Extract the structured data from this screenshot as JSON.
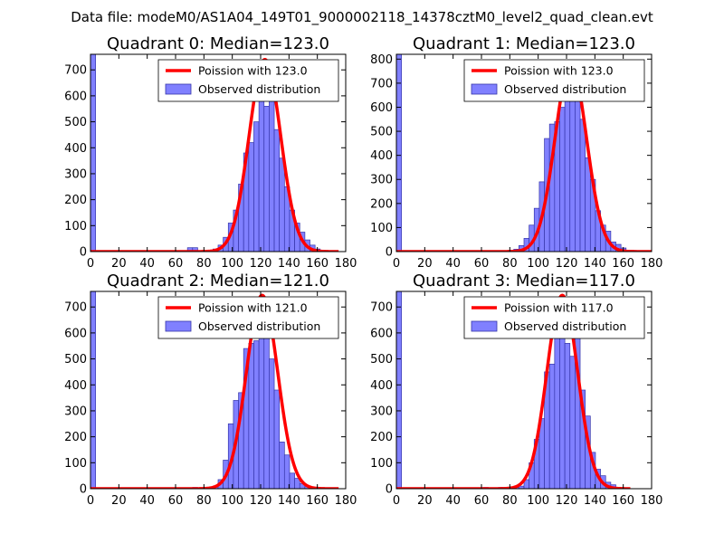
{
  "figure": {
    "title": "Data file: modeM0/AS1A04_149T01_9000002118_14378cztM0_level2_quad_clean.evt",
    "colors": {
      "hist_fill": "#8080ff",
      "hist_edge": "#3535aa",
      "curve": "#ff0000",
      "frame": "#000000"
    }
  },
  "chart_data": [
    {
      "type": "bar",
      "title": "Quadrant 0: Median=123.0",
      "xlim": [
        0,
        180
      ],
      "ylim": [
        0,
        760
      ],
      "xticks": [
        0,
        20,
        40,
        60,
        80,
        100,
        120,
        140,
        160,
        180
      ],
      "yticks": [
        0,
        100,
        200,
        300,
        400,
        500,
        600,
        700
      ],
      "bin_width": 3.6,
      "legend": {
        "curve": "Poission with 123.0",
        "hist": "Observed distribution",
        "placement": "top-right"
      },
      "poisson_lambda": 123.0,
      "poisson_peak": 740,
      "curve_xmax": 175,
      "hist": {
        "bin_starts": [
          0,
          68.4,
          72.0,
          82.8,
          86.4,
          90.0,
          93.6,
          97.2,
          100.8,
          104.4,
          108.0,
          111.6,
          115.2,
          118.8,
          122.4,
          126.0,
          129.6,
          133.2,
          136.8,
          140.4,
          144.0,
          147.6,
          151.2,
          154.8,
          158.4,
          162.0
        ],
        "counts": [
          760,
          15,
          15,
          5,
          10,
          25,
          55,
          110,
          160,
          260,
          380,
          420,
          500,
          600,
          560,
          610,
          470,
          360,
          250,
          160,
          110,
          75,
          45,
          25,
          10,
          5
        ]
      }
    },
    {
      "type": "bar",
      "title": "Quadrant 1: Median=123.0",
      "xlim": [
        0,
        180
      ],
      "ylim": [
        0,
        820
      ],
      "xticks": [
        0,
        20,
        40,
        60,
        80,
        100,
        120,
        140,
        160,
        180
      ],
      "yticks": [
        0,
        100,
        200,
        300,
        400,
        500,
        600,
        700,
        800
      ],
      "bin_width": 3.6,
      "legend": {
        "curve": "Poission with 123.0",
        "hist": "Observed distribution",
        "placement": "top-right"
      },
      "poisson_lambda": 123.0,
      "poisson_peak": 780,
      "curve_xmax": 180,
      "hist": {
        "bin_starts": [
          0,
          79.2,
          82.8,
          86.4,
          90.0,
          93.6,
          97.2,
          100.8,
          104.4,
          108.0,
          111.6,
          115.2,
          118.8,
          122.4,
          126.0,
          129.6,
          133.2,
          136.8,
          140.4,
          144.0,
          147.6,
          151.2,
          154.8,
          158.4,
          162.0,
          165.6
        ],
        "counts": [
          820,
          5,
          10,
          25,
          55,
          110,
          180,
          290,
          470,
          530,
          540,
          600,
          730,
          640,
          680,
          550,
          390,
          300,
          170,
          110,
          85,
          40,
          30,
          15,
          5,
          5
        ]
      }
    },
    {
      "type": "bar",
      "title": "Quadrant 2: Median=121.0",
      "xlim": [
        0,
        180
      ],
      "ylim": [
        0,
        760
      ],
      "xticks": [
        0,
        20,
        40,
        60,
        80,
        100,
        120,
        140,
        160,
        180
      ],
      "yticks": [
        0,
        100,
        200,
        300,
        400,
        500,
        600,
        700
      ],
      "bin_width": 3.6,
      "legend": {
        "curve": "Poission with 121.0",
        "hist": "Observed distribution",
        "placement": "top-right"
      },
      "poisson_lambda": 121.0,
      "poisson_peak": 745,
      "curve_xmax": 175,
      "hist": {
        "bin_starts": [
          0,
          72.0,
          86.4,
          90.0,
          93.6,
          97.2,
          100.8,
          104.4,
          108.0,
          111.6,
          115.2,
          118.8,
          122.4,
          126.0,
          129.6,
          133.2,
          136.8,
          140.4,
          144.0,
          147.6,
          151.2,
          154.8,
          158.4
        ],
        "counts": [
          760,
          5,
          10,
          35,
          110,
          250,
          340,
          370,
          540,
          560,
          570,
          725,
          670,
          500,
          380,
          180,
          130,
          60,
          40,
          20,
          10,
          5,
          5
        ]
      }
    },
    {
      "type": "bar",
      "title": "Quadrant 3: Median=117.0",
      "xlim": [
        0,
        180
      ],
      "ylim": [
        0,
        760
      ],
      "xticks": [
        0,
        20,
        40,
        60,
        80,
        100,
        120,
        140,
        160,
        180
      ],
      "yticks": [
        0,
        100,
        200,
        300,
        400,
        500,
        600,
        700
      ],
      "bin_width": 3.6,
      "legend": {
        "curve": "Poission with 117.0",
        "hist": "Observed distribution",
        "placement": "top-right"
      },
      "poisson_lambda": 117.0,
      "poisson_peak": 745,
      "curve_xmax": 165,
      "hist": {
        "bin_starts": [
          0,
          61.2,
          72.0,
          82.8,
          86.4,
          90.0,
          93.6,
          97.2,
          100.8,
          104.4,
          108.0,
          111.6,
          115.2,
          118.8,
          122.4,
          126.0,
          129.6,
          133.2,
          136.8,
          140.4,
          144.0,
          147.6,
          151.2,
          154.8
        ],
        "counts": [
          760,
          5,
          5,
          5,
          10,
          35,
          100,
          190,
          270,
          450,
          480,
          600,
          670,
          560,
          510,
          610,
          380,
          280,
          140,
          75,
          50,
          25,
          15,
          5
        ]
      }
    }
  ]
}
